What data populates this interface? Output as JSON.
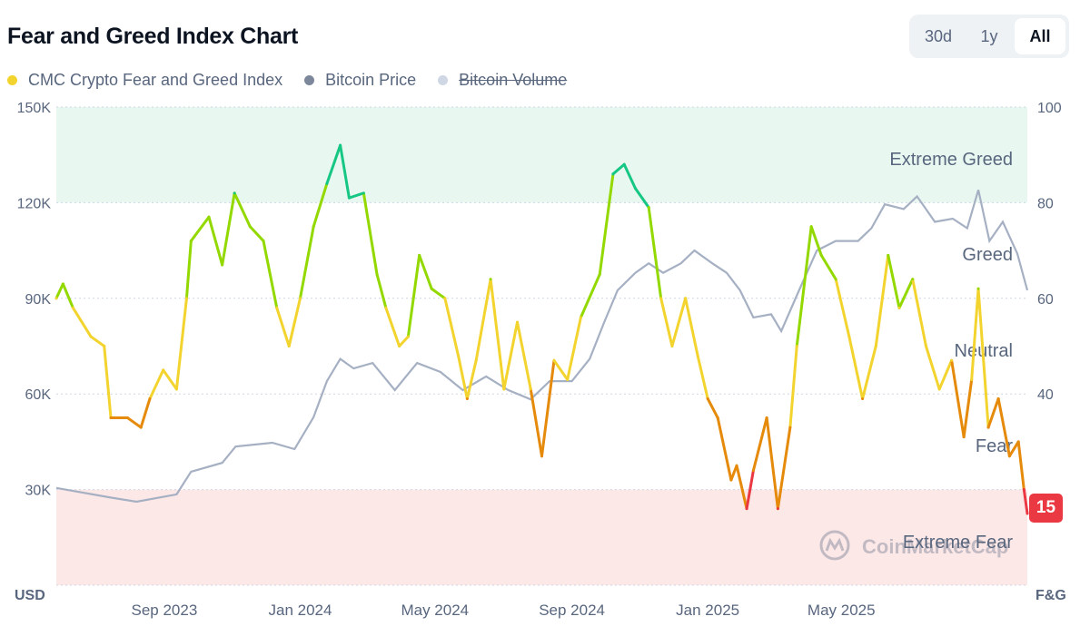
{
  "header": {
    "title": "Fear and Greed Index Chart",
    "ranges": [
      "30d",
      "1y",
      "All"
    ],
    "active_range": "All"
  },
  "legend": [
    {
      "label": "CMC Crypto Fear and Greed Index",
      "color": "#f3d42f",
      "hidden": false
    },
    {
      "label": "Bitcoin Price",
      "color": "#7c879b",
      "hidden": false
    },
    {
      "label": "Bitcoin Volume",
      "color": "#cfd6e4",
      "hidden": true
    }
  ],
  "watermark": "CoinMarketCap",
  "current_value": "15",
  "chart_data": {
    "type": "line",
    "title": "",
    "left_axis": {
      "label": "USD",
      "ticks": [
        "150K",
        "120K",
        "90K",
        "60K",
        "30K"
      ],
      "ylim": [
        0,
        150000
      ]
    },
    "right_axis": {
      "label": "F&G",
      "ticks": [
        "100",
        "80",
        "60",
        "40"
      ],
      "ylim": [
        0,
        100
      ]
    },
    "x_ticks": [
      "Sep 2023",
      "Jan 2024",
      "May 2024",
      "Sep 2024",
      "Jan 2025",
      "May 2025"
    ],
    "xlim": [
      "2023-05-27",
      "2025-10-15"
    ],
    "zones": [
      {
        "label": "Extreme Greed",
        "range": [
          80,
          100
        ],
        "color": "#e8f8f1"
      },
      {
        "label": "Greed",
        "range": [
          60,
          80
        ],
        "color": ""
      },
      {
        "label": "Neutral",
        "range": [
          40,
          60
        ],
        "color": ""
      },
      {
        "label": "Fear",
        "range": [
          20,
          40
        ],
        "color": ""
      },
      {
        "label": "Extreme Fear",
        "range": [
          0,
          20
        ],
        "color": "#fde8e8"
      }
    ],
    "band_colors": {
      "extreme_fear": "#ea3943",
      "fear": "#e58a0b",
      "neutral": "#f3d42f",
      "greed": "#93d900",
      "extreme_greed": "#16c784"
    },
    "series": [
      {
        "name": "CMC Crypto Fear and Greed Index",
        "axis": "right",
        "points": [
          [
            "2023-05-27",
            60
          ],
          [
            "2023-06-02",
            63
          ],
          [
            "2023-06-11",
            58
          ],
          [
            "2023-06-27",
            52
          ],
          [
            "2023-07-09",
            50
          ],
          [
            "2023-07-15",
            35
          ],
          [
            "2023-07-30",
            35
          ],
          [
            "2023-08-11",
            33
          ],
          [
            "2023-08-19",
            39
          ],
          [
            "2023-08-31",
            45
          ],
          [
            "2023-09-12",
            41
          ],
          [
            "2023-09-21",
            60
          ],
          [
            "2023-09-25",
            72
          ],
          [
            "2023-10-11",
            77
          ],
          [
            "2023-10-23",
            67
          ],
          [
            "2023-11-03",
            82
          ],
          [
            "2023-11-17",
            75
          ],
          [
            "2023-11-29",
            72
          ],
          [
            "2023-12-11",
            58
          ],
          [
            "2023-12-22",
            50
          ],
          [
            "2024-01-01",
            60
          ],
          [
            "2024-01-13",
            75
          ],
          [
            "2024-01-25",
            84
          ],
          [
            "2024-02-06",
            92
          ],
          [
            "2024-02-14",
            81
          ],
          [
            "2024-02-27",
            82
          ],
          [
            "2024-03-10",
            65
          ],
          [
            "2024-03-18",
            58
          ],
          [
            "2024-03-30",
            50
          ],
          [
            "2024-04-07",
            52
          ],
          [
            "2024-04-17",
            69
          ],
          [
            "2024-04-28",
            62
          ],
          [
            "2024-05-10",
            60
          ],
          [
            "2024-05-22",
            48
          ],
          [
            "2024-05-30",
            39
          ],
          [
            "2024-06-07",
            47
          ],
          [
            "2024-06-20",
            64
          ],
          [
            "2024-07-02",
            41
          ],
          [
            "2024-07-14",
            55
          ],
          [
            "2024-07-26",
            41
          ],
          [
            "2024-08-05",
            27
          ],
          [
            "2024-08-16",
            47
          ],
          [
            "2024-08-28",
            43
          ],
          [
            "2024-09-09",
            56
          ],
          [
            "2024-09-26",
            65
          ],
          [
            "2024-10-08",
            86
          ],
          [
            "2024-10-18",
            88
          ],
          [
            "2024-10-28",
            83
          ],
          [
            "2024-11-09",
            79
          ],
          [
            "2024-11-20",
            60
          ],
          [
            "2024-11-30",
            50
          ],
          [
            "2024-12-12",
            60
          ],
          [
            "2024-12-23",
            48
          ],
          [
            "2025-01-01",
            39
          ],
          [
            "2025-01-10",
            35
          ],
          [
            "2025-01-22",
            22
          ],
          [
            "2025-01-27",
            25
          ],
          [
            "2025-02-05",
            16
          ],
          [
            "2025-02-11",
            24
          ],
          [
            "2025-02-23",
            35
          ],
          [
            "2025-03-05",
            16
          ],
          [
            "2025-03-16",
            33
          ],
          [
            "2025-03-22",
            50
          ],
          [
            "2025-04-04",
            75
          ],
          [
            "2025-04-13",
            69
          ],
          [
            "2025-04-26",
            64
          ],
          [
            "2025-05-08",
            52
          ],
          [
            "2025-05-20",
            39
          ],
          [
            "2025-06-01",
            50
          ],
          [
            "2025-06-12",
            69
          ],
          [
            "2025-06-22",
            58
          ],
          [
            "2025-07-04",
            64
          ],
          [
            "2025-07-16",
            50
          ],
          [
            "2025-07-28",
            41
          ],
          [
            "2025-08-08",
            47
          ],
          [
            "2025-08-19",
            31
          ],
          [
            "2025-08-26",
            43
          ],
          [
            "2025-09-01",
            62
          ],
          [
            "2025-09-10",
            33
          ],
          [
            "2025-09-19",
            39
          ],
          [
            "2025-09-29",
            27
          ],
          [
            "2025-10-07",
            30
          ],
          [
            "2025-10-12",
            20
          ],
          [
            "2025-10-15",
            15
          ]
        ]
      },
      {
        "name": "Bitcoin Price",
        "axis": "left",
        "points": [
          [
            "2023-05-27",
            30500
          ],
          [
            "2023-07-13",
            27600
          ],
          [
            "2023-08-07",
            26200
          ],
          [
            "2023-09-12",
            28500
          ],
          [
            "2023-09-25",
            35600
          ],
          [
            "2023-10-23",
            38400
          ],
          [
            "2023-11-04",
            43500
          ],
          [
            "2023-12-07",
            44700
          ],
          [
            "2023-12-27",
            42700
          ],
          [
            "2024-01-13",
            52700
          ],
          [
            "2024-01-25",
            64000
          ],
          [
            "2024-02-06",
            71000
          ],
          [
            "2024-02-18",
            68000
          ],
          [
            "2024-03-06",
            69700
          ],
          [
            "2024-03-26",
            61200
          ],
          [
            "2024-04-15",
            69700
          ],
          [
            "2024-05-06",
            66900
          ],
          [
            "2024-05-26",
            61200
          ],
          [
            "2024-06-16",
            65500
          ],
          [
            "2024-07-06",
            61200
          ],
          [
            "2024-07-26",
            58300
          ],
          [
            "2024-08-12",
            64000
          ],
          [
            "2024-09-01",
            64000
          ],
          [
            "2024-09-17",
            71000
          ],
          [
            "2024-09-30",
            82500
          ],
          [
            "2024-10-12",
            92500
          ],
          [
            "2024-10-28",
            98000
          ],
          [
            "2024-11-09",
            101000
          ],
          [
            "2024-11-22",
            98000
          ],
          [
            "2024-12-08",
            101000
          ],
          [
            "2024-12-20",
            105000
          ],
          [
            "2025-01-05",
            101000
          ],
          [
            "2025-01-18",
            98000
          ],
          [
            "2025-01-30",
            92500
          ],
          [
            "2025-02-11",
            84000
          ],
          [
            "2025-02-27",
            85000
          ],
          [
            "2025-03-08",
            79700
          ],
          [
            "2025-03-24",
            92500
          ],
          [
            "2025-04-09",
            105000
          ],
          [
            "2025-04-26",
            108000
          ],
          [
            "2025-05-16",
            108000
          ],
          [
            "2025-05-28",
            112000
          ],
          [
            "2025-06-09",
            119500
          ],
          [
            "2025-06-26",
            118000
          ],
          [
            "2025-07-08",
            122000
          ],
          [
            "2025-07-24",
            114000
          ],
          [
            "2025-08-09",
            115000
          ],
          [
            "2025-08-22",
            112000
          ],
          [
            "2025-09-01",
            124000
          ],
          [
            "2025-09-11",
            108000
          ],
          [
            "2025-09-23",
            114000
          ],
          [
            "2025-10-06",
            104000
          ],
          [
            "2025-10-15",
            92500
          ]
        ]
      }
    ]
  }
}
